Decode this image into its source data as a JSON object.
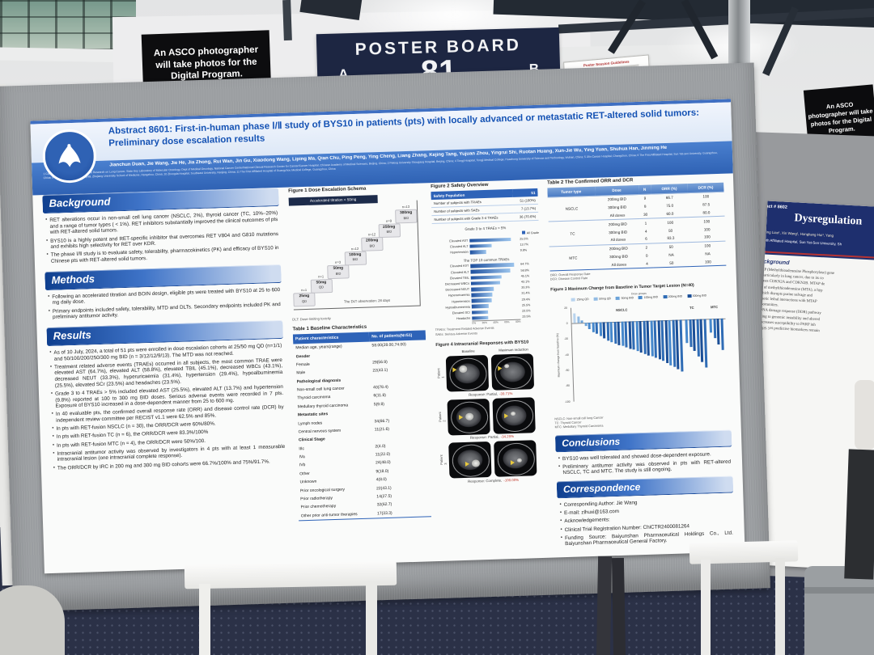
{
  "colors": {
    "accent_blue": "#2e63b8",
    "header_blue": "#3f6fc2",
    "sign_navy": "#1d2642",
    "floor_navy": "#2b3147",
    "alert_red": "#c0392b"
  },
  "scene": {
    "poster_board_sign": {
      "title": "POSTER BOARD",
      "left_letter": "A",
      "number": "81",
      "right_letter": "B"
    },
    "asco_sign_left": "An ASCO photographer will take photos for the Digital Program.",
    "asco_sign_right": "An ASCO photographer will take photos for the Digital Program.",
    "notice_card_title": "Poster Session Guidelines"
  },
  "poster": {
    "title": "Abstract 8601: First-in-human phase Ⅰ/Ⅱ study of BYS10 in patients (pts) with locally advanced or metastatic RET-altered solid tumors: Preliminary dose escalation results",
    "authors": "Jianchun Duan, Jie Wang, Jie He, Jia Zhong, Rui Wan, Jin Gu, Xiaodong Wang, Liping Ma, Qian Chu, Ping Peng, Ying Cheng, Liang Zhang, Kejing Tang, Yujuan Zhou, Yingrui Shi, Ruotan Huang, Xun-Jie Wu, Ying Yuan, Shuhua Han, Jinming He",
    "affiliations": "1 CAMS Key Laboratory of Translational Research on Lung Cancer, State Key Laboratory of Molecular Oncology, Dept of Medical Oncology, National Cancer Center/National Clinical Research Center for Cancer/Cancer Hospital, Chinese Academy of Medical Sciences, Beijing, China; 2 Peking University Shougang Hospital, Beijing, China; 4 Tongji Hospital, Tongji Medical College, Huazhong University of Science and Technology, Wuhan, China; 5 Jilin Cancer Hospital, Changchun, China; 6 The First Affiliated Hospital, Sun Yat-sen University, Guangzhou, China; 9 The Second Affiliated Hospital, Zhejiang University School of Medicine, Hangzhou, China; 10 Zhongda Hospital, Southeast University, Nanjing, China; 11 The First Affiliated Hospital of Guangzhou Medical College, Guangzhou, China",
    "background": {
      "title": "Background",
      "bullets": [
        "RET alterations occur in non-small cell lung cancer (NSCLC, 2%), thyroid cancer (TC, 10%–20%) and a range of tumor types ( < 1%). RET inhibitors substantially improved the clinical outcomes of pts with RET-altered solid tumors.",
        "BYS10 is a highly potent and RET-specific inhibitor that overcomes RET V804 and G810 mutations and exhibits high selectivity for RET over KDR.",
        "The phase Ⅰ/Ⅱ study is to evaluate safety, tolerability, pharmacokinetics (PK) and efficacy of BYS10 in Chinese pts with RET-altered solid tumors."
      ]
    },
    "methods": {
      "title": "Methods",
      "bullets": [
        "Following an accelerated titration and BOIN design, eligible pts were treated with BYS10 at 25 to 600 mg daily dose.",
        "Primary endpoints included safety, tolerability, MTD and DLTs. Secondary endpoints included PK and preliminary antitumor activity."
      ]
    },
    "results": {
      "title": "Results",
      "bullets": [
        "As of 10 July, 2024, a total of 51 pts were enrolled in dose escalation cohorts at 25/50 mg QD (n=1/1) and 50/100/200/250/300 mg BID (n = 3/12/12/9/13). The MTD was not reached.",
        "Treatment related adverse events (TRAEs) occurred in all subjects, the most common TRAE were elevated AST (64.7%), elevated ALT (58.8%), elevated TBIL (45.1%), decreased WBCs (43.1%), decreased NEUT (33.3%), hyperuricaemia (31.4%), hypertension (29.4%), hypoalbuminemia (25.5%), elevated SCr (23.5%) and headaches (23.5%).",
        "Grade 3 to 4 TRAEs > 5% included elevated AST (25.5%), elevated ALT (13.7%) and hypertension (9.8%) reported at 100 to 300 mg BID doses. Serious adverse events were recorded in 7 pts. Exposure of BYS10 increased in a dose-dependent manner from 25 to 600 mg.",
        "In 40 evaluable pts, the confirmed overall response rate (ORR) and disease control rate (DCR) by independent review committee per RECIST v1.1 were 62.5% and 85%.",
        "In pts with RET-fusion NSCLC (n = 30), the ORR/DCR were 60%/80%.",
        "In pts with RET-fusion TC (n = 6), the ORR/DCR were 83.3%/100%",
        "In pts with RET-fusion MTC (n = 4), the ORR/DCR were 50%/100.",
        "Intracranial antitumor activity was observed by investigators in 4 pts with at least 1 measurable intracranial lesion (one intracranial complete response).",
        "The ORR/DCR by IRC in 200 mg and 300 mg BID cohorts were 66.7%/100% and 75%/91.7%."
      ]
    },
    "figure1": {
      "title": "Figure 1 Dose Escalation Schema",
      "accel_label": "Accelerated titration < 50mg",
      "steps": [
        [
          "n=1",
          "25mg",
          "QD"
        ],
        [
          "n=1",
          "50mg",
          "QD"
        ],
        [
          "n=3",
          "50mg",
          "BID"
        ],
        [
          "n=12",
          "100mg",
          "BID"
        ],
        [
          "n=12",
          "200mg",
          "BID"
        ],
        [
          "n=9",
          "250mg",
          "BID"
        ],
        [
          "n=13",
          "300mg",
          "BID"
        ]
      ],
      "dlt_note": "The DLT observation: 28 days",
      "footnote": "DLT: Dose-limiting toxicity"
    },
    "table1": {
      "title": "Table 1 Baseline Characteristics",
      "headers": [
        "Patient characteristics",
        "No. of patients(N=51)"
      ],
      "rows": [
        [
          "Median age, years(range)",
          "58.00(28.00,74.00)"
        ],
        [
          "Gender",
          ""
        ],
        [
          "Female",
          "29(56.9)"
        ],
        [
          "Male",
          "22(43.1)"
        ],
        [
          "Pathological diagnosis",
          ""
        ],
        [
          "Non-small cell lung cancer",
          "40(78.4)"
        ],
        [
          "Thyroid carcinoma",
          "6(11.8)"
        ],
        [
          "Medullary thyroid carcinoma",
          "5(9.8)"
        ],
        [
          "Metastatic sites",
          ""
        ],
        [
          "Lymph nodes",
          "34(66.7)"
        ],
        [
          "Central nervous system",
          "11(21.6)"
        ],
        [
          "Clinical Stage",
          ""
        ],
        [
          "IIIc",
          "2(4.0)"
        ],
        [
          "IVa",
          "11(22.0)"
        ],
        [
          "IVb",
          "24(48.0)"
        ],
        [
          "Other",
          "9(18.0)"
        ],
        [
          "Unknown",
          "4(8.0)"
        ],
        [
          "Prior oncological surgery",
          "22(43.1)"
        ],
        [
          "Prior radiotherapy",
          "14(27.5)"
        ],
        [
          "Prior chemotherapy",
          "32(62.7)"
        ],
        [
          "Other prior anti-tumor therapies",
          "17(33.3)"
        ]
      ]
    },
    "figure2": {
      "title": "Figure 2 Safety Overview",
      "table_headers": [
        "Safety Population",
        "51"
      ],
      "table_rows": [
        [
          "Number of subjects with TRAEs",
          "51 (100%)"
        ],
        [
          "Number of subjects with SAEs",
          "7 (13.7%)"
        ],
        [
          "Number of subjects with Grade 3-4 TRAEs",
          "36 (70.6%)"
        ]
      ],
      "g34_title": "Grade 3 to 4 TRAEs > 5%",
      "g34_legend": "All Grade",
      "g34": {
        "labels": [
          "Elevated AST",
          "Elevated ALT",
          "Hypertension"
        ],
        "values": [
          25.5,
          13.7,
          9.8
        ]
      },
      "top10_title": "The TOP 10 common TRAEs",
      "top10": {
        "labels": [
          "Elevated AST",
          "Elevated ALT",
          "Elevated TBIL",
          "Decreased WBCs",
          "Decreased NEUT",
          "Hyperuricaemia",
          "Hypertension",
          "Hypoalbuminemia",
          "Elevated SCr",
          "Headache"
        ],
        "values": [
          64.7,
          58.8,
          45.1,
          43.1,
          33.3,
          31.4,
          29.4,
          25.5,
          23.5,
          23.5
        ]
      },
      "axis_ticks": [
        "0%",
        "20%",
        "40%",
        "60%",
        "80%"
      ],
      "footnotes": [
        "TRAEs: Treatment Related Adverse Events",
        "SAEs: Serious Adverse Events"
      ]
    },
    "table2": {
      "title": "Table 2 The Confirmed ORR and DCR",
      "headers": [
        "Tumor type",
        "Dose",
        "N",
        "ORR (%)",
        "DCR (%)"
      ],
      "groups": [
        {
          "tumor": "NSCLC",
          "rows": [
            [
              "200mg BID",
              "9",
              "66.7",
              "100"
            ],
            [
              "300mg BID",
              "8",
              "75.0",
              "87.5"
            ],
            [
              "All doses",
              "30",
              "60.0",
              "80.0"
            ]
          ]
        },
        {
          "tumor": "TC",
          "rows": [
            [
              "200mg BID",
              "1",
              "100",
              "100"
            ],
            [
              "300mg BID",
              "4",
              "50",
              "100"
            ],
            [
              "All doses",
              "6",
              "83.3",
              "100"
            ]
          ]
        },
        {
          "tumor": "MTC",
          "rows": [
            [
              "200mg BID",
              "2",
              "50",
              "100"
            ],
            [
              "300mg BID",
              "0",
              "NA",
              "NA"
            ],
            [
              "All doses",
              "4",
              "50",
              "100"
            ]
          ]
        }
      ],
      "footnotes": [
        "ORR: Overall Response Rate",
        "DCR: Disease Control Rate"
      ]
    },
    "figure3": {
      "title": "Figure 3 Maximum Change from Baseline in Tumor Target Lesion (N=40)",
      "type": "waterfall-bar",
      "legend_title": "Dose groups",
      "legend": [
        "25mg QD",
        "50mg QD",
        "50mg BID",
        "100mg BID",
        "200mg BID",
        "300mg BID"
      ],
      "groups": [
        "NSCLC",
        "TC",
        "MTC"
      ],
      "ylabel": "Maximum change from baseline (%)",
      "yticks": [
        20,
        0,
        -20,
        -40,
        -60,
        -80,
        -100
      ],
      "values": [
        12,
        8,
        3,
        -4,
        -8,
        -12,
        -15,
        -18,
        -21,
        -24,
        -26,
        -28,
        -30,
        -31,
        -33,
        -35,
        -36,
        -38,
        -40,
        -42,
        -44,
        -46,
        -48,
        -50,
        -52,
        -55,
        -58,
        -60,
        -63,
        -66,
        -30,
        -35,
        -40,
        -48,
        -55,
        -62,
        -18,
        -25,
        -33,
        -40
      ],
      "doses": [
        0,
        1,
        2,
        2,
        3,
        3,
        4,
        3,
        5,
        4,
        3,
        4,
        5,
        3,
        4,
        5,
        4,
        3,
        5,
        4,
        5,
        3,
        4,
        5,
        4,
        5,
        3,
        4,
        5,
        4,
        3,
        4,
        5,
        4,
        5,
        4,
        3,
        4,
        5,
        4
      ],
      "footnotes": [
        "NSCLC: Non-small cell lung Cancer",
        "TC: Thyroid Cancer",
        "MTC: Medullary Thyroid Carcinoma"
      ]
    },
    "figure4": {
      "title": "Figure 4 Intracranial Responses with BYS10",
      "col_headers": [
        "Baseline",
        "Maximum reduction"
      ],
      "patients": [
        {
          "label": "Patient 1",
          "response": "Response: Partial,",
          "value": "-39.71%"
        },
        {
          "label": "Patient 2",
          "response": "Response: Partial,",
          "value": "-34.29%"
        },
        {
          "label": "Patient 3",
          "response": "Response: Complete,",
          "value": "-100.00%"
        }
      ]
    },
    "conclusions": {
      "title": "Conclusions",
      "bullets": [
        "BYS10 was well tolerated and showed dose-dependent exposure.",
        "Preliminary antitumor activity was observed in pts with RET-altered NSCLC, TC and MTC. The study is still ongoing."
      ]
    },
    "correspondence": {
      "title": "Correspondence",
      "lines": [
        "Corresponding Author: Jie Wang",
        "E-mail: zlhuxi@163.com",
        "Acknowledgements:",
        "Clinical Trial Registration Number: ChiCTR2400081264",
        "Funding Source: Baiyunshan Pharmaceutical Holdings Co., Ltd. Baiyunshan Pharmaceutical General Factory."
      ]
    }
  },
  "poster2": {
    "abstract_no": "Abstract # 8602",
    "title": "Dysregulation",
    "authors": "Wenting Liao¹, Xin Wang¹, Hongliang Hui¹, Yang",
    "affiliation": "Eighth Affiliated Hospital, Sun Yat-Sen University, Sh",
    "section": "Background",
    "body": [
      "MTAP (Methylthioadenosine Phosphorylase) gene",
      "ers, particularly in lung cancer, due to its co",
      "or genes CDKN2A and CDKN2B. MTAP de",
      "ation of methylthioadenosine (MTA), a hyp",
      "m, which disrupts purine salvage and",
      "Synthetic lethal interactions with MTAP",
      "e opportunities.",
      "the DNA damage response (DDR) pathway",
      "tributing to genomic instability and altered",
      "DR increases susceptibility to PARP inh",
      "otherapy, yet predictive biomarkers remain"
    ]
  }
}
